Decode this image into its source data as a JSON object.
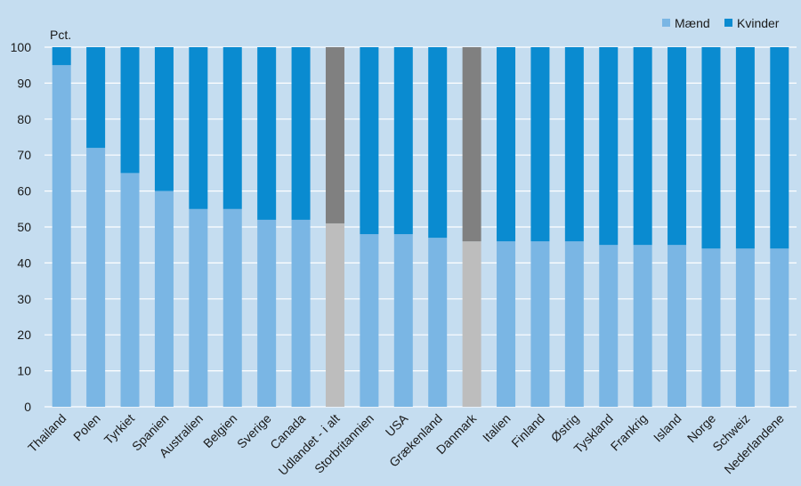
{
  "chart_data": {
    "type": "bar",
    "stacked": true,
    "ylabel": "Pct.",
    "ylim": [
      0,
      100
    ],
    "yticks": [
      0,
      10,
      20,
      30,
      40,
      50,
      60,
      70,
      80,
      90,
      100
    ],
    "grid": true,
    "legend_position": "top-right",
    "categories": [
      "Thailand",
      "Polen",
      "Tyrkiet",
      "Spanien",
      "Australien",
      "Belgien",
      "Sverige",
      "Canada",
      "Udlandet - i alt",
      "Storbritannien",
      "USA",
      "Grækenland",
      "Danmark",
      "Italien",
      "Finland",
      "Østrig",
      "Tyskland",
      "Frankrig",
      "Island",
      "Norge",
      "Schweiz",
      "Nederlandene"
    ],
    "highlighted": [
      "Udlandet - i alt",
      "Danmark"
    ],
    "series": [
      {
        "name": "Mænd",
        "color": "#7ab6e4",
        "highlight_color": "#bdbdbd",
        "values": [
          95,
          72,
          65,
          60,
          55,
          55,
          52,
          52,
          51,
          48,
          48,
          47,
          46,
          46,
          46,
          46,
          45,
          45,
          45,
          44,
          44,
          44
        ]
      },
      {
        "name": "Kvinder",
        "color": "#0a8bd0",
        "highlight_color": "#808080",
        "values": [
          5,
          28,
          35,
          40,
          45,
          45,
          48,
          48,
          49,
          52,
          52,
          53,
          54,
          54,
          54,
          54,
          55,
          55,
          55,
          56,
          56,
          56
        ]
      }
    ]
  }
}
